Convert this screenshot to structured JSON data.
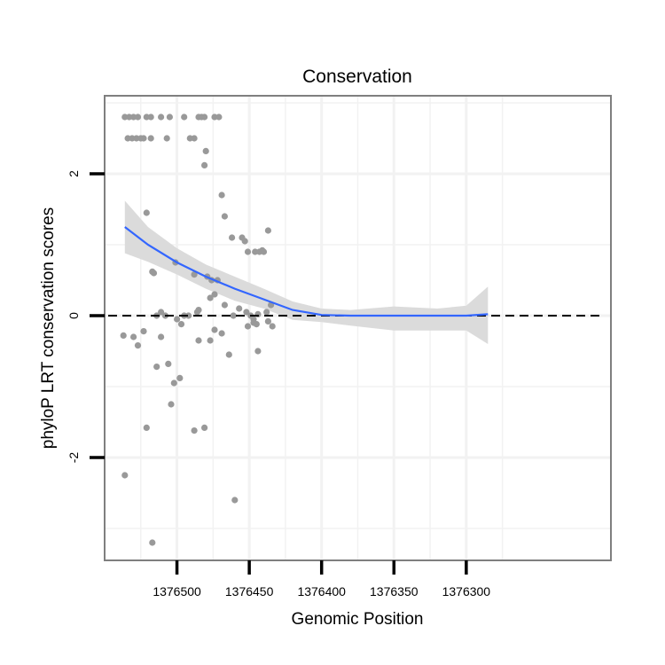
{
  "chart_data": {
    "type": "scatter",
    "title": "Conservation",
    "xlabel": "Genomic Position",
    "ylabel": "phyloP LRT conservation scores",
    "x_reversed": true,
    "xlim": [
      1376200,
      1376550
    ],
    "ylim": [
      -3.45,
      3.1
    ],
    "x_ticks": [
      1376500,
      1376450,
      1376400,
      1376350,
      1376300
    ],
    "x_tick_labels": [
      "1376500",
      "1376450",
      "1376400",
      "1376350",
      "1376300"
    ],
    "y_ticks": [
      -2,
      0,
      2
    ],
    "y_tick_labels": [
      "-2",
      "0",
      "2"
    ],
    "reference_line": {
      "y": 0,
      "style": "dashed"
    },
    "grid": true,
    "colors": {
      "points": "#999999",
      "smooth": "#3366ff",
      "band": "#d9d9d9",
      "panel_border": "#7f7f7f",
      "grid": "#f2f2f2",
      "reference": "#000000"
    },
    "points": [
      [
        1376536,
        2.8
      ],
      [
        1376533,
        2.8
      ],
      [
        1376530,
        2.8
      ],
      [
        1376527,
        2.8
      ],
      [
        1376521,
        2.8
      ],
      [
        1376518,
        2.8
      ],
      [
        1376511,
        2.8
      ],
      [
        1376505,
        2.8
      ],
      [
        1376495,
        2.8
      ],
      [
        1376485,
        2.8
      ],
      [
        1376483,
        2.8
      ],
      [
        1376481,
        2.8
      ],
      [
        1376474,
        2.8
      ],
      [
        1376471,
        2.8
      ],
      [
        1376534,
        2.5
      ],
      [
        1376531,
        2.5
      ],
      [
        1376528,
        2.5
      ],
      [
        1376525,
        2.5
      ],
      [
        1376523,
        2.5
      ],
      [
        1376518,
        2.5
      ],
      [
        1376507,
        2.5
      ],
      [
        1376491,
        2.5
      ],
      [
        1376488,
        2.5
      ],
      [
        1376480,
        2.32
      ],
      [
        1376481,
        2.12
      ],
      [
        1376469,
        1.7
      ],
      [
        1376467,
        1.4
      ],
      [
        1376462,
        1.1
      ],
      [
        1376455,
        1.1
      ],
      [
        1376453,
        1.05
      ],
      [
        1376451,
        0.9
      ],
      [
        1376446,
        0.9
      ],
      [
        1376443,
        0.9
      ],
      [
        1376440,
        0.9
      ],
      [
        1376441,
        0.92
      ],
      [
        1376437,
        1.2
      ],
      [
        1376521,
        1.45
      ],
      [
        1376517,
        0.62
      ],
      [
        1376516,
        0.6
      ],
      [
        1376501,
        0.75
      ],
      [
        1376488,
        0.58
      ],
      [
        1376479,
        0.55
      ],
      [
        1376476,
        0.5
      ],
      [
        1376472,
        0.5
      ],
      [
        1376474,
        0.3
      ],
      [
        1376477,
        0.25
      ],
      [
        1376485,
        0.08
      ],
      [
        1376486,
        0.05
      ],
      [
        1376511,
        0.05
      ],
      [
        1376514,
        0.0
      ],
      [
        1376508,
        0.0
      ],
      [
        1376495,
        0.0
      ],
      [
        1376492,
        0.0
      ],
      [
        1376467,
        0.15
      ],
      [
        1376461,
        0.0
      ],
      [
        1376457,
        0.1
      ],
      [
        1376452,
        0.05
      ],
      [
        1376449,
        0.0
      ],
      [
        1376444,
        0.02
      ],
      [
        1376438,
        0.05
      ],
      [
        1376435,
        0.15
      ],
      [
        1376447,
        -0.05
      ],
      [
        1376445,
        -0.12
      ],
      [
        1376437,
        -0.08
      ],
      [
        1376434,
        -0.15
      ],
      [
        1376537,
        -0.28
      ],
      [
        1376530,
        -0.3
      ],
      [
        1376527,
        -0.42
      ],
      [
        1376523,
        -0.22
      ],
      [
        1376511,
        -0.3
      ],
      [
        1376500,
        -0.05
      ],
      [
        1376497,
        -0.12
      ],
      [
        1376485,
        -0.35
      ],
      [
        1376477,
        -0.35
      ],
      [
        1376474,
        -0.2
      ],
      [
        1376469,
        -0.25
      ],
      [
        1376464,
        -0.55
      ],
      [
        1376451,
        -0.15
      ],
      [
        1376447,
        -0.1
      ],
      [
        1376444,
        -0.5
      ],
      [
        1376514,
        -0.72
      ],
      [
        1376506,
        -0.68
      ],
      [
        1376502,
        -0.95
      ],
      [
        1376498,
        -0.88
      ],
      [
        1376504,
        -1.25
      ],
      [
        1376521,
        -1.58
      ],
      [
        1376488,
        -1.62
      ],
      [
        1376481,
        -1.58
      ],
      [
        1376536,
        -2.25
      ],
      [
        1376460,
        -2.6
      ],
      [
        1376517,
        -3.2
      ]
    ],
    "smooth": {
      "x": [
        1376536,
        1376520,
        1376500,
        1376480,
        1376460,
        1376440,
        1376420,
        1376400,
        1376380,
        1376350,
        1376320,
        1376300,
        1376285
      ],
      "y": [
        1.25,
        1.0,
        0.75,
        0.55,
        0.38,
        0.23,
        0.08,
        0.01,
        0.0,
        0.0,
        0.0,
        0.0,
        0.02
      ],
      "lower": [
        0.88,
        0.76,
        0.58,
        0.38,
        0.21,
        0.1,
        -0.06,
        -0.09,
        -0.14,
        -0.21,
        -0.21,
        -0.21,
        -0.4
      ],
      "upper": [
        1.62,
        1.25,
        0.95,
        0.72,
        0.55,
        0.38,
        0.2,
        0.1,
        0.08,
        0.13,
        0.1,
        0.14,
        0.41
      ]
    }
  }
}
